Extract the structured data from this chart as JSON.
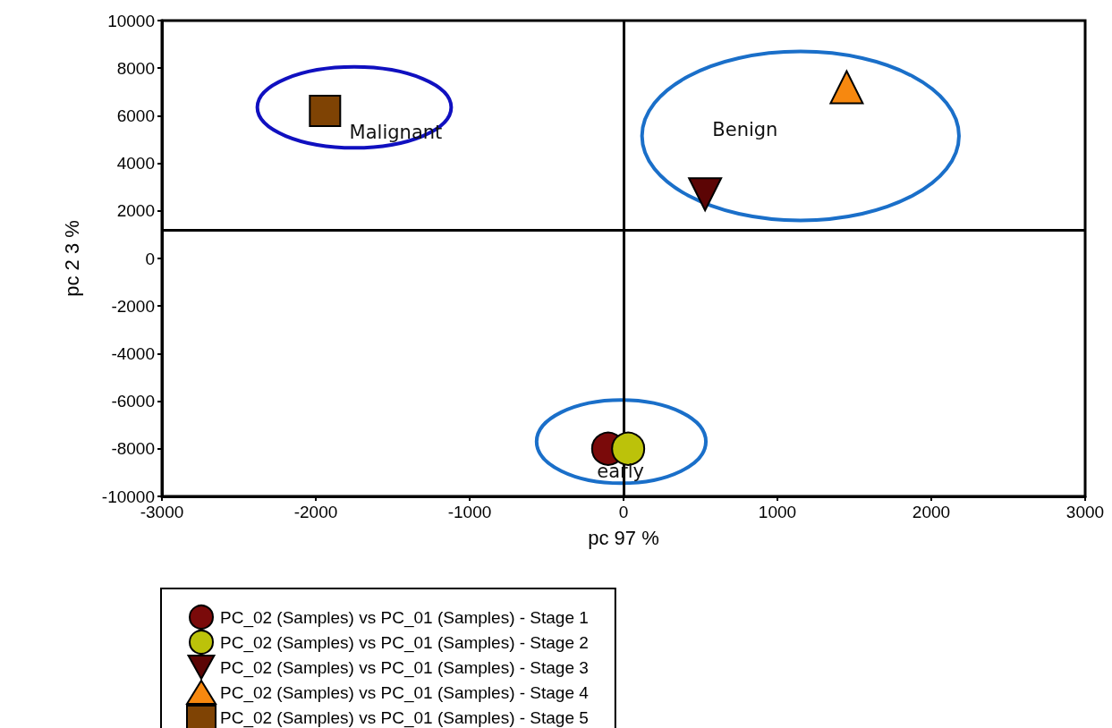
{
  "chart_data": {
    "type": "scatter",
    "xlabel": "pc 97 %",
    "ylabel": "pc 2 3 %",
    "xlim": [
      -3000,
      3000
    ],
    "xticks": [
      -3000,
      -2000,
      -1000,
      0,
      1000,
      2000,
      3000
    ],
    "ylim": [
      -10000,
      10000
    ],
    "yticks": [
      -10000,
      -8000,
      -6000,
      -4000,
      -2000,
      0,
      2000,
      4000,
      6000,
      8000,
      10000
    ],
    "grid": false,
    "legend": "bottom",
    "series": [
      {
        "name": "PC_02 (Samples) vs PC_01 (Samples) - Stage 1",
        "color": "#7a0a0a",
        "marker": "circle",
        "x": [
          -100
        ],
        "values": [
          -8000
        ]
      },
      {
        "name": "PC_02 (Samples) vs PC_01 (Samples) - Stage 2",
        "color": "#bcc20a",
        "marker": "circle",
        "x": [
          30
        ],
        "values": [
          -8000
        ]
      },
      {
        "name": "PC_02 (Samples) vs PC_01 (Samples) - Stage 3",
        "color": "#5c0505",
        "marker": "triangle-down",
        "x": [
          530
        ],
        "values": [
          2700
        ]
      },
      {
        "name": "PC_02 (Samples) vs PC_01 (Samples) - Stage 4",
        "color": "#f7880f",
        "marker": "triangle",
        "x": [
          1450
        ],
        "values": [
          7200
        ]
      },
      {
        "name": "PC_02 (Samples) vs PC_01 (Samples) - Stage 5",
        "color": "#7f4304",
        "marker": "square",
        "x": [
          -1940
        ],
        "values": [
          6200
        ]
      }
    ],
    "ref_lines": [
      {
        "axis": "x",
        "value": 0,
        "label": null,
        "color": "#000000"
      },
      {
        "axis": "y",
        "value": 1200,
        "label": null,
        "color": "#000000"
      }
    ],
    "annotations": [
      "Malignant",
      "Benign",
      "early"
    ]
  }
}
